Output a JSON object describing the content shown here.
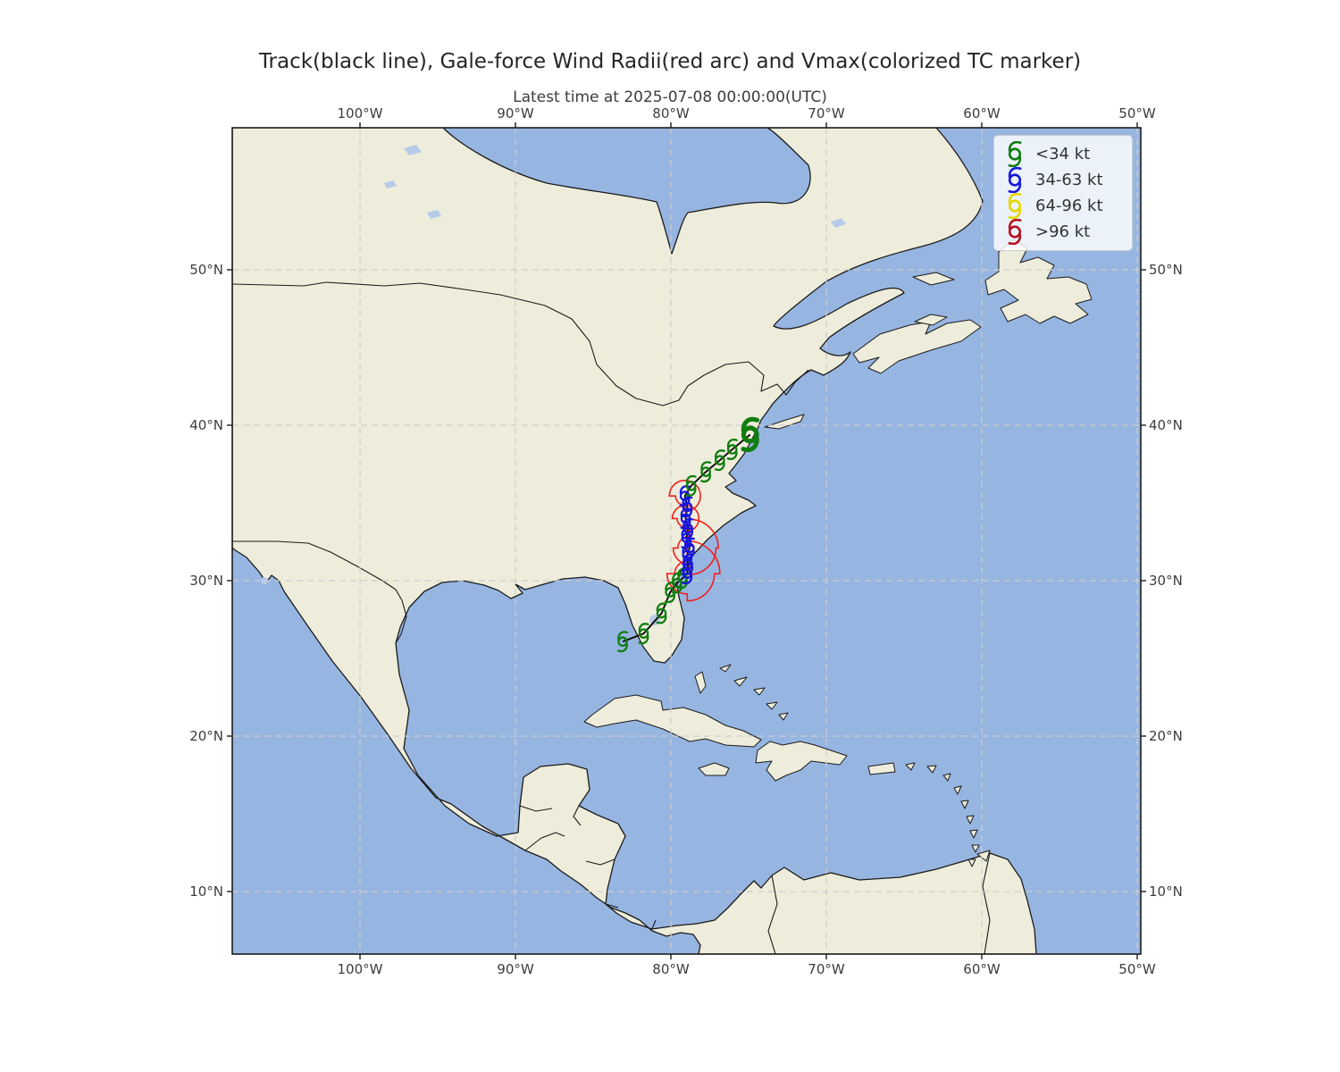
{
  "title": "Track(black line), Gale-force Wind Radii(red arc) and Vmax(colorized TC marker)",
  "subtitle": "Latest time at 2025-07-08 00:00:00(UTC)",
  "axes": {
    "lon_tick_labels": [
      "100°W",
      "90°W",
      "80°W",
      "70°W",
      "60°W",
      "50°W"
    ],
    "lon_tick_degrees": [
      -100,
      -90,
      -80,
      -70,
      -60,
      -50
    ],
    "lat_tick_labels": [
      "50°N",
      "40°N",
      "30°N",
      "20°N",
      "10°N"
    ],
    "lat_tick_degrees": [
      50,
      40,
      30,
      20,
      10
    ],
    "grid": "dashed"
  },
  "legend": {
    "items": [
      {
        "label": "<34 kt",
        "color": "#0f7d0f"
      },
      {
        "label": "34-63 kt",
        "color": "#1616dd"
      },
      {
        "label": "64-96 kt",
        "color": "#e3d800"
      },
      {
        "label": ">96 kt",
        "color": "#b5121f"
      }
    ]
  },
  "colors": {
    "ocean": "#97b5e1",
    "land": "#eeeddb",
    "track": "#111111",
    "wind_radii_arc": "#ef2020"
  },
  "chart_data": {
    "type": "line",
    "subtype": "tc-track-map",
    "title": "Track(black line), Gale-force Wind Radii(red arc) and Vmax(colorized TC marker)",
    "latest_time_utc": "2025-07-08 00:00:00",
    "map_extent": {
      "lon_min": -108.2,
      "lon_max": -49.8,
      "lat_min": 6.0,
      "lat_max": 59.1
    },
    "vmax_bins": [
      "<34 kt",
      "34-63 kt",
      "64-96 kt",
      ">96 kt"
    ],
    "track_points": [
      {
        "lon": -83.1,
        "lat": 26.08,
        "vmax_bin": "<34 kt"
      },
      {
        "lon": -81.75,
        "lat": 26.6,
        "vmax_bin": "<34 kt"
      },
      {
        "lon": -80.6,
        "lat": 27.9,
        "vmax_bin": "<34 kt"
      },
      {
        "lon": -80.05,
        "lat": 29.25,
        "vmax_bin": "<34 kt"
      },
      {
        "lon": -79.6,
        "lat": 29.85,
        "vmax_bin": "<34 kt"
      },
      {
        "lon": -79.25,
        "lat": 30.15,
        "vmax_bin": "<34 kt"
      },
      {
        "lon": -78.95,
        "lat": 30.45,
        "vmax_bin": "34-63 kt"
      },
      {
        "lon": -78.9,
        "lat": 31.05,
        "vmax_bin": "34-63 kt"
      },
      {
        "lon": -78.95,
        "lat": 31.65,
        "vmax_bin": "34-63 kt"
      },
      {
        "lon": -78.8,
        "lat": 32.1,
        "vmax_bin": "34-63 kt"
      },
      {
        "lon": -79.0,
        "lat": 32.75,
        "vmax_bin": "34-63 kt"
      },
      {
        "lon": -78.9,
        "lat": 33.35,
        "vmax_bin": "34-63 kt"
      },
      {
        "lon": -79.05,
        "lat": 34.0,
        "vmax_bin": "34-63 kt"
      },
      {
        "lon": -78.95,
        "lat": 34.75,
        "vmax_bin": "34-63 kt"
      },
      {
        "lon": -79.1,
        "lat": 35.45,
        "vmax_bin": "34-63 kt"
      },
      {
        "lon": -78.7,
        "lat": 36.1,
        "vmax_bin": "<34 kt"
      },
      {
        "lon": -77.75,
        "lat": 37.0,
        "vmax_bin": "<34 kt"
      },
      {
        "lon": -76.85,
        "lat": 37.75,
        "vmax_bin": "<34 kt"
      },
      {
        "lon": -76.05,
        "lat": 38.45,
        "vmax_bin": "<34 kt"
      },
      {
        "lon": -74.9,
        "lat": 39.4,
        "vmax_bin": "<34 kt",
        "latest": true
      }
    ],
    "gale_wind_radii_deg": [
      {
        "lon": -78.95,
        "lat": 30.45,
        "ne": 2.1,
        "se": 1.75,
        "sw": 1.3,
        "nw": 0.8
      },
      {
        "lon": -78.8,
        "lat": 32.1,
        "ne": 1.85,
        "se": 1.7,
        "sw": 1.05,
        "nw": 0.75
      },
      {
        "lon": -79.05,
        "lat": 34.0,
        "ne": 0.85,
        "se": 0.85,
        "sw": 0.55,
        "nw": 0.85
      },
      {
        "lon": -79.1,
        "lat": 35.45,
        "ne": 1.0,
        "se": 1.0,
        "sw": 0.6,
        "nw": 1.0
      }
    ]
  }
}
